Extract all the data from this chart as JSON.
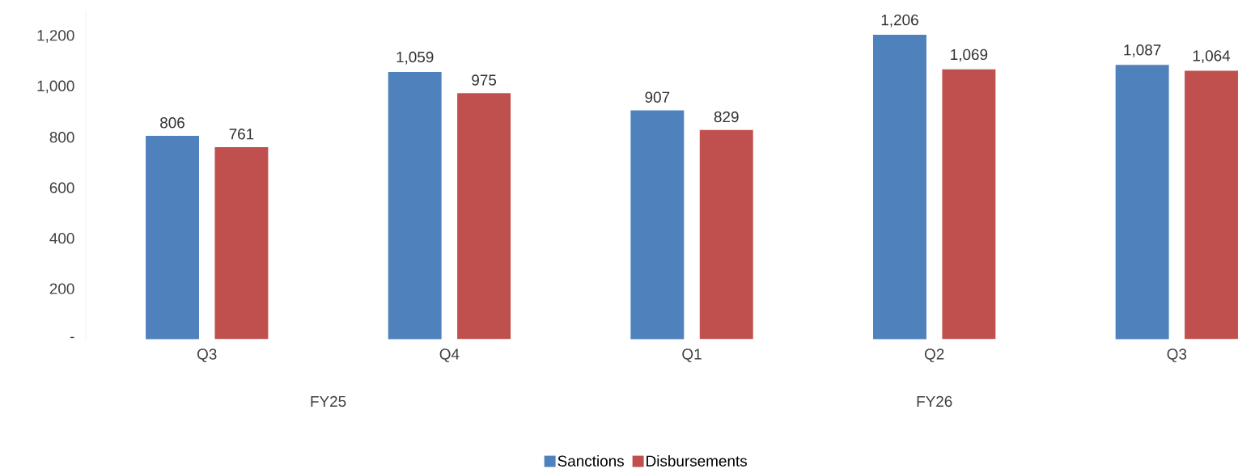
{
  "chart_data": {
    "type": "bar",
    "categories": [
      "Q3",
      "Q4",
      "Q1",
      "Q2",
      "Q3"
    ],
    "series": [
      {
        "name": "Sanctions",
        "color": "#4f81bd",
        "values": [
          806,
          1059,
          907,
          1206,
          1087
        ],
        "value_labels": [
          "806",
          "1,059",
          "907",
          "1,206",
          "1,087"
        ]
      },
      {
        "name": "Disbursements",
        "color": "#c0504d",
        "values": [
          761,
          975,
          829,
          1069,
          1064
        ],
        "value_labels": [
          "761",
          "975",
          "829",
          "1,069",
          "1,064"
        ]
      }
    ],
    "ylim": [
      0,
      1300
    ],
    "yticks": [
      {
        "value": 0,
        "label": "-"
      },
      {
        "value": 200,
        "label": "200"
      },
      {
        "value": 400,
        "label": "400"
      },
      {
        "value": 600,
        "label": "600"
      },
      {
        "value": 800,
        "label": "800"
      },
      {
        "value": 1000,
        "label": "1,000"
      },
      {
        "value": 1200,
        "label": "1,200"
      }
    ],
    "grid": false,
    "legend": "bottom",
    "annotations": [
      "FY25",
      "FY26"
    ]
  }
}
